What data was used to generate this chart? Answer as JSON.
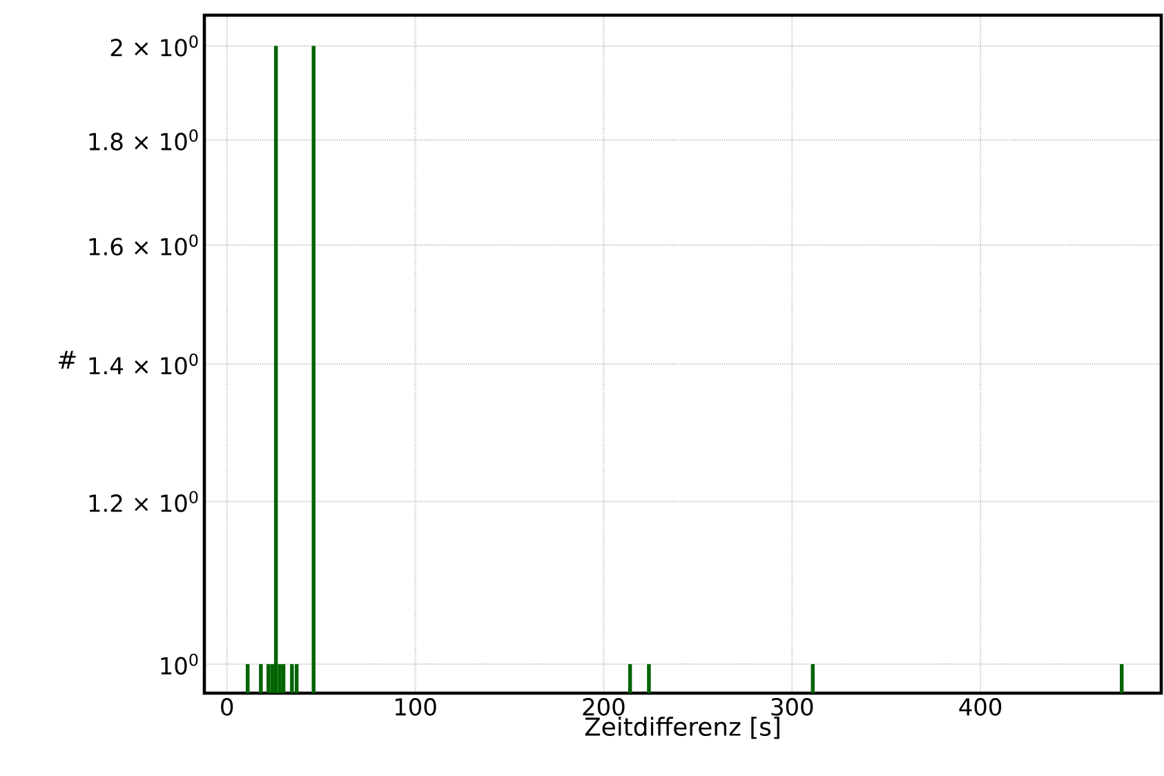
{
  "chart_data": {
    "type": "bar",
    "xlabel": "Zeitdifferenz [s]",
    "ylabel": "#",
    "x": [
      11,
      18,
      22,
      24,
      26,
      28,
      30,
      34.5,
      37,
      46,
      214,
      224,
      311,
      475
    ],
    "values": [
      1,
      1,
      1,
      1,
      2,
      1,
      1,
      1,
      1,
      2,
      1,
      1,
      1,
      1
    ],
    "color": "#006400",
    "xlim": [
      -12,
      496
    ],
    "ylim": [
      0.968,
      2.07
    ],
    "xticks": [
      0,
      100,
      200,
      300,
      400
    ],
    "yticks": [
      {
        "value": 1,
        "label": "10$^{0}$"
      },
      {
        "value": 1.2,
        "label": "1.2 × 10$^{0}$"
      },
      {
        "value": 1.4,
        "label": "1.4 × 10$^{0}$"
      },
      {
        "value": 1.6,
        "label": "1.6 × 10$^{0}$"
      },
      {
        "value": 1.8,
        "label": "1.8 × 10$^{0}$"
      },
      {
        "value": 2,
        "label": "2 × 10$^{0}$"
      }
    ],
    "log": "y",
    "grid": true
  }
}
